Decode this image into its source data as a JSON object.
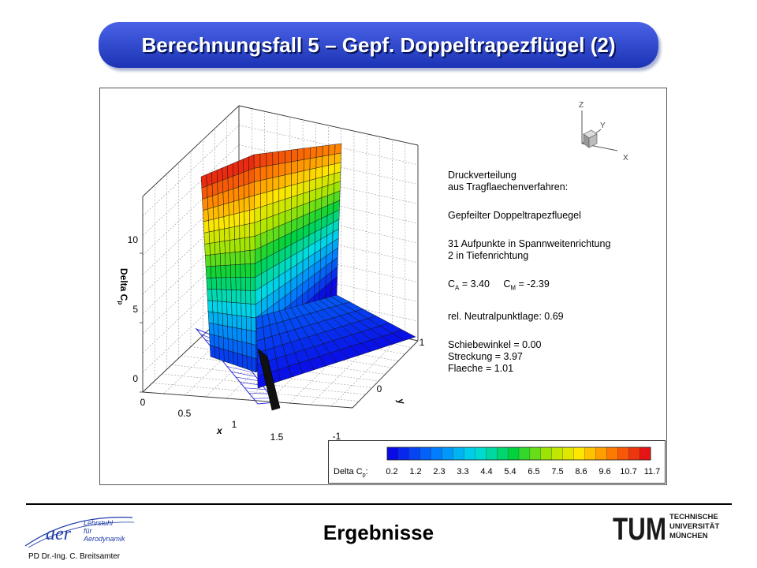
{
  "slide": {
    "title": "Berechnungsfall 5 – Gepf. Doppeltrapezflügel (2)",
    "section": "Ergebnisse",
    "author": "PD Dr.-Ing. C. Breitsamter"
  },
  "logos": {
    "aer_mark": "aer",
    "aer_lines": [
      "Lehrstuhl",
      "für",
      "Aerodynamik"
    ],
    "tum_mark": "TUM",
    "tum_lines": [
      "TECHNISCHE",
      "UNIVERSITÄT",
      "MÜNCHEN"
    ]
  },
  "info": {
    "line1": "Druckverteilung",
    "line2": "aus Tragflaechenverfahren:",
    "config": "Gepfeilter Doppeltrapezfluegel",
    "points_span": "31 Aufpunkte in Spannweitenrichtung",
    "points_chord": "2 in Tiefenrichtung",
    "ca_label": "C",
    "ca_sub": "A",
    "ca_value": "= 3.40",
    "cm_label": "C",
    "cm_sub": "M",
    "cm_value": "= -2.39",
    "neutral_point": "rel. Neutralpunktlage: 0.69",
    "sideslip": "Schiebewinkel = 0.00",
    "aspect": "Streckung = 3.97",
    "area": "Flaeche = 1.01"
  },
  "axes_triad": {
    "z": "Z",
    "y": "Y",
    "x": "X"
  },
  "chart_data": {
    "type": "surface3d",
    "zlabel": "Delta C",
    "zlabel_sub": "p",
    "xlabel": "x",
    "ylabel": "y",
    "z_ticks": [
      "0",
      "5",
      "10"
    ],
    "x_ticks": [
      "0",
      "0.5",
      "1",
      "1.5"
    ],
    "y_ticks": [
      "-1",
      "0",
      "1"
    ],
    "zlim": [
      0,
      12
    ],
    "xlim": [
      0,
      1.7
    ],
    "ylim": [
      -1,
      1
    ],
    "legend": {
      "label": "Delta C",
      "label_sub": "p",
      "label_suffix": ":",
      "levels": [
        "0.2",
        "1.2",
        "2.3",
        "3.3",
        "4.4",
        "5.4",
        "6.5",
        "7.5",
        "8.6",
        "9.6",
        "10.7",
        "11.7"
      ]
    }
  }
}
